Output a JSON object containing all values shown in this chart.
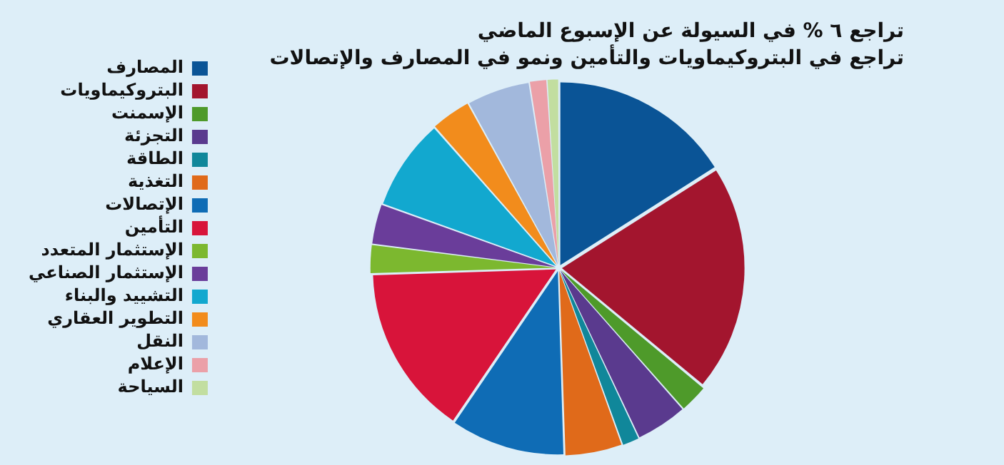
{
  "chart_data": {
    "type": "pie",
    "title": "تراجع ٦ % في السيولة عن الإسبوع الماضي",
    "subtitle": "تراجع في البتروكيماويات والتأمين ونمو في المصارف والإتصالات",
    "legend": "left",
    "categories": [
      "المصارف",
      "البتروكيماويات",
      "الإسمنت",
      "التجزئة",
      "الطاقة",
      "التغذية",
      "الإتصالات",
      "التأمين",
      "الإستثمار المتعدد",
      "الإستثمار الصناعي",
      "التشييد والبناء",
      "التطوير العقاري",
      "النقل",
      "الإعلام",
      "السياحة"
    ],
    "values": [
      16,
      20,
      2.5,
      4.5,
      1.5,
      5,
      10,
      15,
      2.5,
      3.5,
      8,
      3.5,
      5.5,
      1.5,
      1
    ],
    "colors": [
      "#0a5496",
      "#a3152e",
      "#4e9a2a",
      "#5a3a8e",
      "#10879a",
      "#e06a1a",
      "#0f6cb5",
      "#d8143a",
      "#7cb82f",
      "#6a3d9a",
      "#12a8cf",
      "#f28c1c",
      "#a2b8dc",
      "#eba0a8",
      "#c2dea0"
    ]
  }
}
